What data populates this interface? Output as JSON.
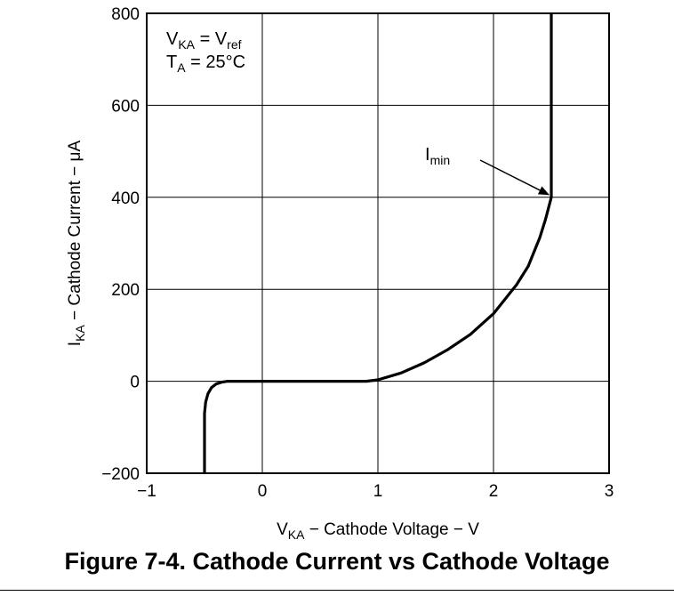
{
  "figure_caption": "Figure 7-4. Cathode Current vs Cathode Voltage",
  "chart_data": {
    "type": "line",
    "xlabel": {
      "main": "V",
      "sub": "KA",
      "rest": " − Cathode Voltage − V"
    },
    "ylabel": {
      "main": "I",
      "sub": "KA",
      "rest": " − Cathode Current −  μA"
    },
    "xlim": [
      -1,
      3
    ],
    "ylim": [
      -200,
      800
    ],
    "x_ticks": [
      -1,
      0,
      1,
      2,
      3
    ],
    "x_tick_labels": [
      "−1",
      "0",
      "1",
      "2",
      "3"
    ],
    "y_ticks": [
      -200,
      0,
      200,
      400,
      600,
      800
    ],
    "y_tick_labels": [
      "−200",
      "0",
      "200",
      "400",
      "600",
      "800"
    ],
    "grid": true,
    "conditions": {
      "line1": {
        "a": "V",
        "a_sub": "KA",
        "mid": " = V",
        "b_sub": "ref"
      },
      "line2": {
        "a": "T",
        "a_sub": "A",
        "mid": " = 25°C"
      }
    },
    "annotation": {
      "main": "I",
      "sub": "min",
      "point": [
        2.5,
        400
      ]
    },
    "series": [
      {
        "values": [
          [
            -0.5,
            -200
          ],
          [
            -0.5,
            -70
          ],
          [
            -0.49,
            -45
          ],
          [
            -0.47,
            -27
          ],
          [
            -0.44,
            -14
          ],
          [
            -0.4,
            -6
          ],
          [
            -0.35,
            -2
          ],
          [
            -0.3,
            0
          ],
          [
            0,
            0
          ],
          [
            0.5,
            0
          ],
          [
            0.9,
            0
          ],
          [
            1.0,
            3
          ],
          [
            1.2,
            18
          ],
          [
            1.4,
            40
          ],
          [
            1.6,
            68
          ],
          [
            1.8,
            102
          ],
          [
            2.0,
            147
          ],
          [
            2.2,
            210
          ],
          [
            2.3,
            250
          ],
          [
            2.4,
            312
          ],
          [
            2.45,
            352
          ],
          [
            2.5,
            400
          ],
          [
            2.5,
            800
          ]
        ]
      }
    ]
  }
}
